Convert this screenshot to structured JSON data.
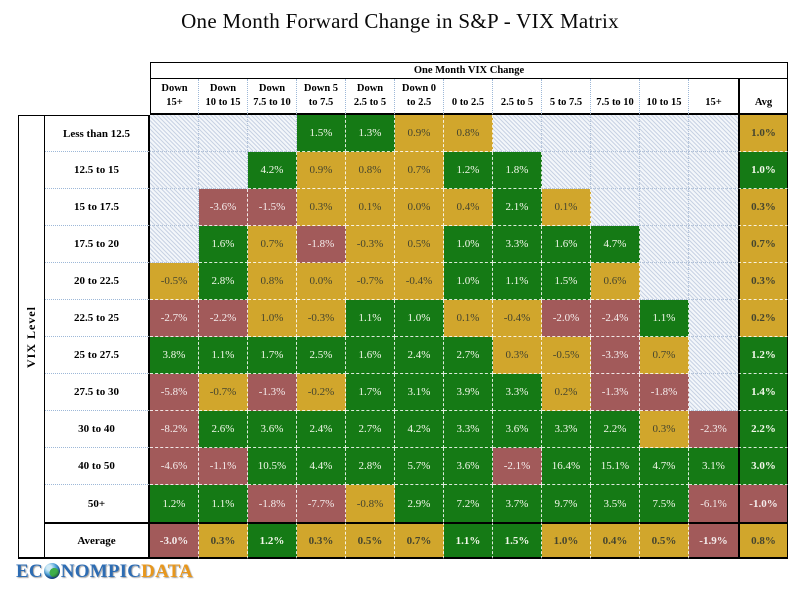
{
  "title": "One Month Forward Change in S&P - VIX Matrix",
  "colors": {
    "positive_green": "#157a15",
    "neutral_gold": "#d1a62c",
    "negative_red": "#a25a5a",
    "hatch_stripe": "#c9d3e4",
    "gold_text": "#45452f",
    "light_text": "#f2f7ea",
    "logo_blue": "#2d6cb3",
    "logo_orange": "#e8971c"
  },
  "logo": {
    "prefix": "EC",
    "middle": "NOMPIC",
    "suffix": "DATA"
  },
  "table": {
    "group_header": "One Month VIX Change",
    "row_axis_label": "VIX Level",
    "col_headers": [
      [
        "Down",
        "15+"
      ],
      [
        "Down",
        "10 to 15"
      ],
      [
        "Down",
        "7.5 to 10"
      ],
      [
        "Down 5",
        "to 7.5"
      ],
      [
        "Down",
        "2.5 to 5"
      ],
      [
        "Down 0",
        "to 2.5"
      ],
      [
        "0 to 2.5"
      ],
      [
        "2.5 to 5"
      ],
      [
        "5 to 7.5"
      ],
      [
        "7.5 to 10"
      ],
      [
        "10 to 15"
      ],
      [
        "15+"
      ],
      [
        "Avg"
      ]
    ]
  },
  "chart_data": {
    "type": "heatmap",
    "title": "One Month Forward Change in S&P - VIX Matrix",
    "col_group_label": "One Month VIX Change",
    "row_group_label": "VIX Level",
    "value_unit": "percent",
    "columns": [
      "Down 15+",
      "Down 10 to 15",
      "Down 7.5 to 10",
      "Down 5 to 7.5",
      "Down 2.5 to 5",
      "Down 0 to 2.5",
      "0 to 2.5",
      "2.5 to 5",
      "5 to 7.5",
      "7.5 to 10",
      "10 to 15",
      "15+",
      "Avg"
    ],
    "rows": [
      "Less than 12.5",
      "12.5 to 15",
      "15 to 17.5",
      "17.5 to 20",
      "20 to 22.5",
      "22.5 to 25",
      "25 to 27.5",
      "27.5 to 30",
      "30 to 40",
      "40 to 50",
      "50+",
      "Average"
    ],
    "values_pct": [
      [
        null,
        null,
        null,
        1.5,
        1.3,
        0.9,
        0.8,
        null,
        null,
        null,
        null,
        null,
        1.0
      ],
      [
        null,
        null,
        4.2,
        0.9,
        0.8,
        0.7,
        1.2,
        1.8,
        null,
        null,
        null,
        null,
        1.0
      ],
      [
        null,
        -3.6,
        -1.5,
        0.3,
        0.1,
        0.0,
        0.4,
        2.1,
        0.1,
        null,
        null,
        null,
        0.3
      ],
      [
        null,
        1.6,
        0.7,
        -1.8,
        -0.3,
        0.5,
        1.0,
        3.3,
        1.6,
        4.7,
        null,
        null,
        0.7
      ],
      [
        -0.5,
        2.8,
        0.8,
        0.0,
        -0.7,
        -0.4,
        1.0,
        1.1,
        1.5,
        0.6,
        null,
        null,
        0.3
      ],
      [
        -2.7,
        -2.2,
        1.0,
        -0.3,
        1.1,
        1.0,
        0.1,
        -0.4,
        -2.0,
        -2.4,
        1.1,
        null,
        0.2
      ],
      [
        3.8,
        1.1,
        1.7,
        2.5,
        1.6,
        2.4,
        2.7,
        0.3,
        -0.5,
        -3.3,
        0.7,
        null,
        1.2
      ],
      [
        -5.8,
        -0.7,
        -1.3,
        -0.2,
        1.7,
        3.1,
        3.9,
        3.3,
        0.2,
        -1.3,
        -1.8,
        null,
        1.4
      ],
      [
        -8.2,
        2.6,
        3.6,
        2.4,
        2.7,
        4.2,
        3.3,
        3.6,
        3.3,
        2.2,
        0.3,
        -2.3,
        2.2
      ],
      [
        -4.6,
        -1.1,
        10.5,
        4.4,
        2.8,
        5.7,
        3.6,
        -2.1,
        16.4,
        15.1,
        4.7,
        3.1,
        3.0
      ],
      [
        1.2,
        1.1,
        -1.8,
        -7.7,
        -0.8,
        2.9,
        7.2,
        3.7,
        9.7,
        3.5,
        7.5,
        -6.1,
        -1.0
      ],
      [
        -3.0,
        0.3,
        1.2,
        0.3,
        0.5,
        0.7,
        1.1,
        1.5,
        1.0,
        0.4,
        0.5,
        -1.9,
        0.8
      ]
    ],
    "cell_colors": [
      [
        null,
        null,
        null,
        "g",
        "g",
        "y",
        "y",
        null,
        null,
        null,
        null,
        null,
        "y"
      ],
      [
        null,
        null,
        "g",
        "y",
        "y",
        "y",
        "g",
        "g",
        null,
        null,
        null,
        null,
        "g"
      ],
      [
        null,
        "r",
        "r",
        "y",
        "y",
        "y",
        "y",
        "g",
        "y",
        null,
        null,
        null,
        "y"
      ],
      [
        null,
        "g",
        "y",
        "r",
        "y",
        "y",
        "g",
        "g",
        "g",
        "g",
        null,
        null,
        "y"
      ],
      [
        "y",
        "g",
        "y",
        "y",
        "y",
        "y",
        "g",
        "g",
        "g",
        "y",
        null,
        null,
        "y"
      ],
      [
        "r",
        "r",
        "y",
        "y",
        "g",
        "g",
        "y",
        "y",
        "r",
        "r",
        "g",
        null,
        "y"
      ],
      [
        "g",
        "g",
        "g",
        "g",
        "g",
        "g",
        "g",
        "y",
        "y",
        "r",
        "y",
        null,
        "g"
      ],
      [
        "r",
        "y",
        "r",
        "y",
        "g",
        "g",
        "g",
        "g",
        "y",
        "r",
        "r",
        null,
        "g"
      ],
      [
        "r",
        "g",
        "g",
        "g",
        "g",
        "g",
        "g",
        "g",
        "g",
        "g",
        "y",
        "r",
        "g"
      ],
      [
        "r",
        "r",
        "g",
        "g",
        "g",
        "g",
        "g",
        "r",
        "g",
        "g",
        "g",
        "g",
        "g"
      ],
      [
        "g",
        "g",
        "r",
        "r",
        "y",
        "g",
        "g",
        "g",
        "g",
        "g",
        "g",
        "r",
        "r"
      ],
      [
        "r",
        "y",
        "g",
        "y",
        "y",
        "y",
        "g",
        "g",
        "y",
        "y",
        "y",
        "r",
        "y"
      ]
    ],
    "legend": "green = strong positive forward S&P change, gold = flat/small change, red = negative forward S&P change, hatched = no data"
  }
}
